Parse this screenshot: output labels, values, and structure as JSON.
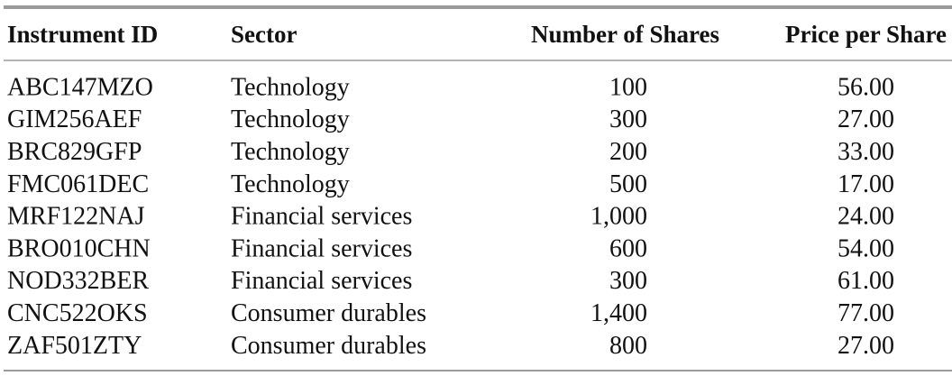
{
  "table": {
    "columns": [
      "Instrument ID",
      "Sector",
      "Number of Shares",
      "Price per Share"
    ],
    "rows": [
      [
        "ABC147MZO",
        "Technology",
        "100",
        "56.00"
      ],
      [
        "GIM256AEF",
        "Technology",
        "300",
        "27.00"
      ],
      [
        "BRC829GFP",
        "Technology",
        "200",
        "33.00"
      ],
      [
        "FMC061DEC",
        "Technology",
        "500",
        "17.00"
      ],
      [
        "MRF122NAJ",
        "Financial services",
        "1,000",
        "24.00"
      ],
      [
        "BRO010CHN",
        "Financial services",
        "600",
        "54.00"
      ],
      [
        "NOD332BER",
        "Financial services",
        "300",
        "61.00"
      ],
      [
        "CNC522OKS",
        "Consumer durables",
        "1,400",
        "77.00"
      ],
      [
        "ZAF501ZTY",
        "Consumer durables",
        "800",
        "27.00"
      ]
    ]
  }
}
